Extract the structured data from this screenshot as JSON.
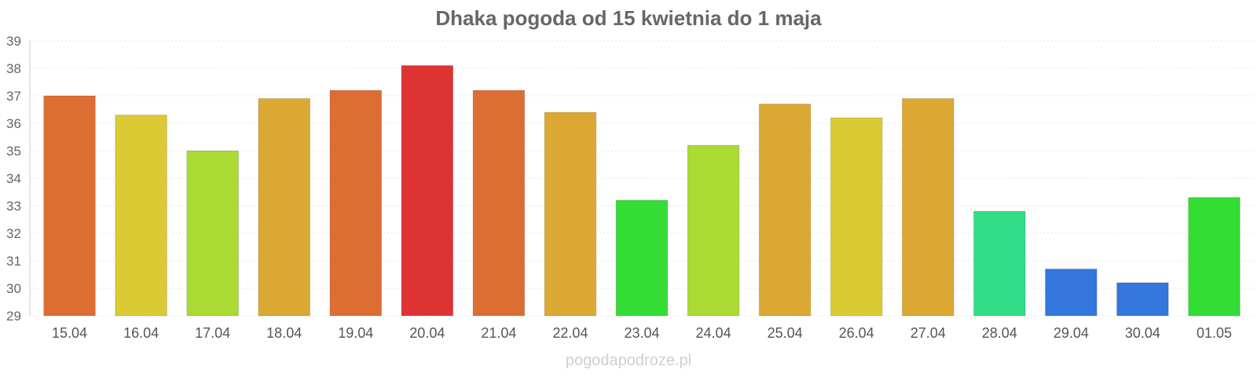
{
  "chart_data": {
    "type": "bar",
    "title": "Dhaka pogoda od 15 kwietnia do 1 maja",
    "xlabel": "",
    "ylabel": "",
    "ylim": [
      29,
      39
    ],
    "yticks": [
      29,
      30,
      31,
      32,
      33,
      34,
      35,
      36,
      37,
      38,
      39
    ],
    "grid": true,
    "categories": [
      "15.04",
      "16.04",
      "17.04",
      "18.04",
      "19.04",
      "20.04",
      "21.04",
      "22.04",
      "23.04",
      "24.04",
      "25.04",
      "26.04",
      "27.04",
      "28.04",
      "29.04",
      "30.04",
      "01.05"
    ],
    "values": [
      37.0,
      36.3,
      35.0,
      36.9,
      37.2,
      38.1,
      37.2,
      36.4,
      33.2,
      35.2,
      36.7,
      36.2,
      36.9,
      32.8,
      30.7,
      30.2,
      33.3
    ],
    "colors": [
      "#dd6e33",
      "#dbca33",
      "#aadb33",
      "#dba933",
      "#dd6e33",
      "#dd3333",
      "#dd6e33",
      "#dba933",
      "#33dd33",
      "#aadb33",
      "#dba933",
      "#dbca33",
      "#dba933",
      "#33dd88",
      "#3377dd",
      "#3377dd",
      "#33dd33"
    ]
  },
  "watermark": "pogodapodroze.pl"
}
